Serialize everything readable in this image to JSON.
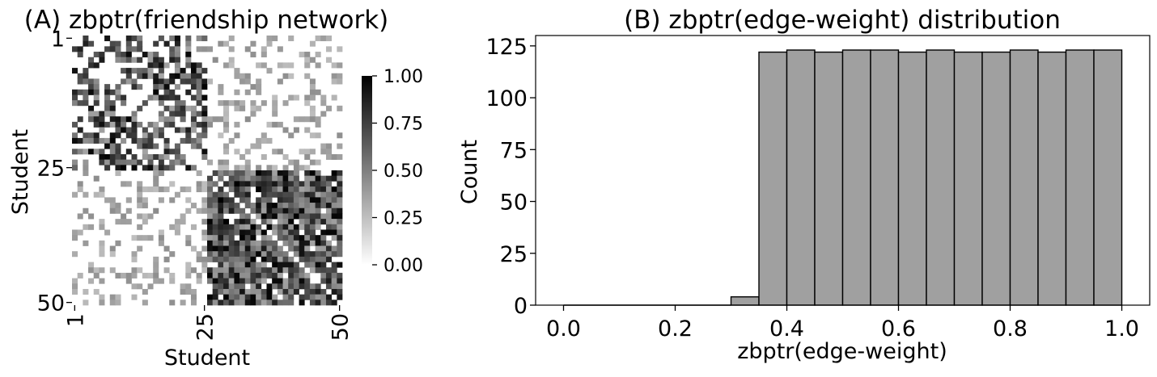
{
  "chart_data": [
    {
      "type": "heatmap",
      "title": "(A) zbptr(friendship network)",
      "xlabel": "Student",
      "ylabel": "Student",
      "n": 50,
      "x_ticks": [
        "1",
        "25",
        "50"
      ],
      "y_ticks": [
        "1",
        "25",
        "50"
      ],
      "colorbar": {
        "range": [
          0,
          1
        ],
        "ticks": [
          "0.00",
          "0.25",
          "0.50",
          "0.75",
          "1.00"
        ],
        "colormap": [
          "#ffffff",
          "#000000"
        ]
      },
      "blocks": [
        {
          "group": "1-25 x 1-25",
          "density": 0.5,
          "weight_range": [
            0.35,
            1.0
          ]
        },
        {
          "group": "26-50 x 26-50",
          "density": 0.9,
          "weight_range": [
            0.35,
            1.0
          ]
        },
        {
          "group": "between groups",
          "density": 0.28,
          "weight_range": [
            0.25,
            0.45
          ]
        }
      ],
      "diagonal": 0
    },
    {
      "type": "bar",
      "title": "(B) zbptr(edge-weight) distribution",
      "xlabel": "zbptr(edge-weight)",
      "ylabel": "Count",
      "bin_edges": [
        0.0,
        0.05,
        0.1,
        0.15,
        0.2,
        0.25,
        0.3,
        0.35,
        0.4,
        0.45,
        0.5,
        0.55,
        0.6,
        0.65,
        0.7,
        0.75,
        0.8,
        0.85,
        0.9,
        0.95,
        1.0
      ],
      "values": [
        0,
        0,
        0,
        0,
        0,
        0,
        4,
        122,
        123,
        122,
        123,
        123,
        122,
        123,
        122,
        122,
        123,
        122,
        123,
        123
      ],
      "xlim": [
        -0.05,
        1.05
      ],
      "ylim": [
        0,
        130
      ],
      "x_ticks": [
        "0.0",
        "0.2",
        "0.4",
        "0.6",
        "0.8",
        "1.0"
      ],
      "y_ticks": [
        "0",
        "25",
        "50",
        "75",
        "100",
        "125"
      ],
      "bar_color": "#a0a0a0",
      "edge_color": "#000000"
    }
  ]
}
